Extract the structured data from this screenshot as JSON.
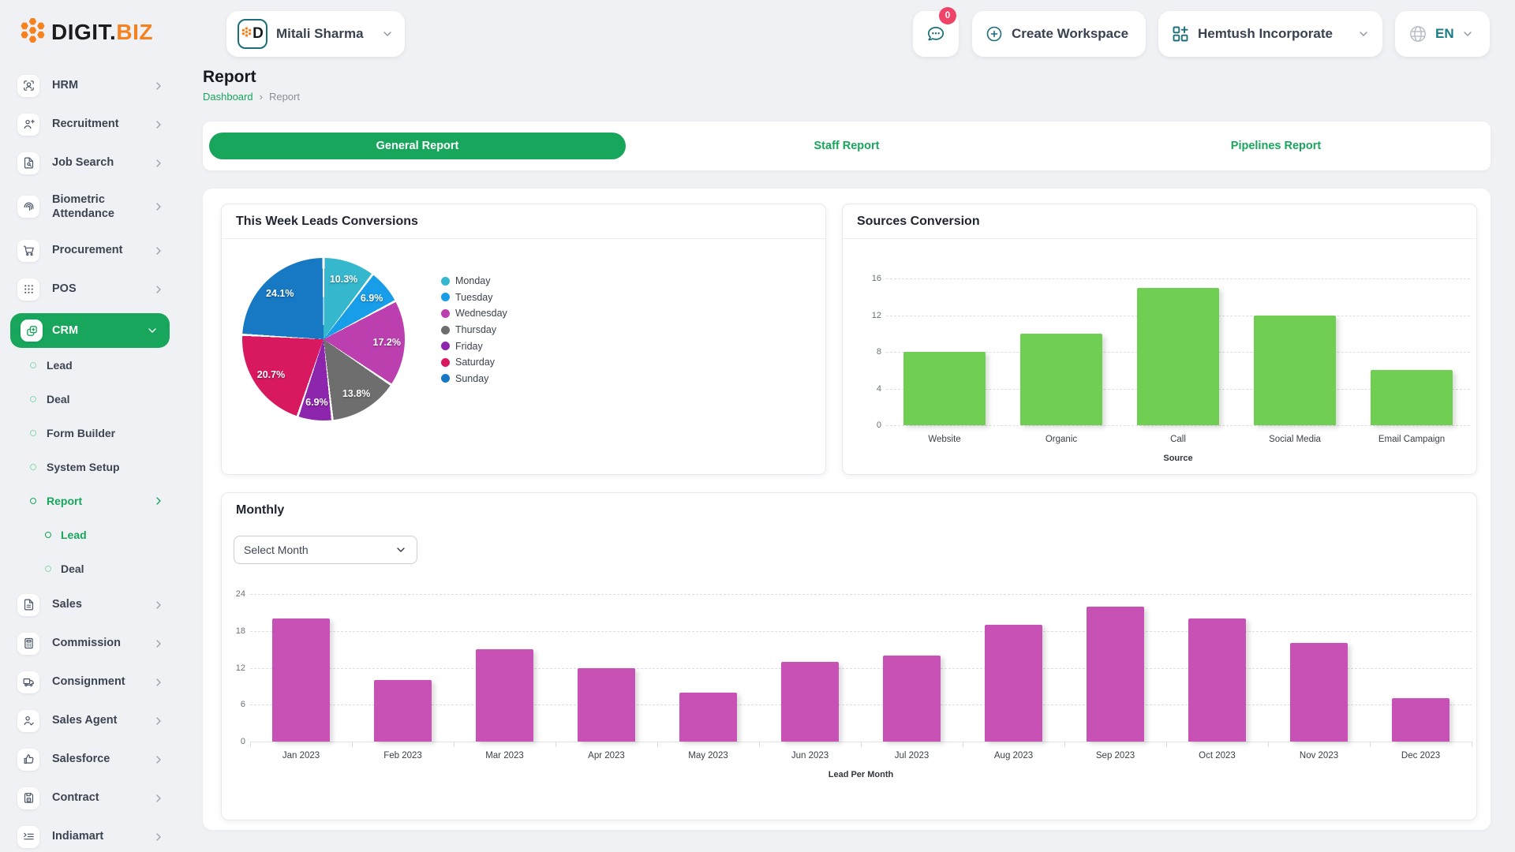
{
  "topbar": {
    "logo_digit": "DIGIT.",
    "logo_biz": "BIZ",
    "workspace_user": "Mitali Sharma",
    "chat_badge": "0",
    "create_workspace_label": "Create Workspace",
    "company": "Hemtush Incorporate",
    "language": "EN",
    "accent_teal": "#1b6f78",
    "badge_red": "#ef4368",
    "logo_orange": "#f6821f"
  },
  "sidebar": {
    "items": [
      {
        "label": "HRM",
        "icon": "hrm-icon"
      },
      {
        "label": "Recruitment",
        "icon": "recruitment-icon"
      },
      {
        "label": "Job Search",
        "icon": "job-search-icon"
      },
      {
        "label": "Biometric Attendance",
        "icon": "fingerprint-icon",
        "tall": true
      },
      {
        "label": "Procurement",
        "icon": "cart-icon"
      },
      {
        "label": "POS",
        "icon": "grid-dots-icon"
      },
      {
        "label": "CRM",
        "icon": "crm-copy-icon",
        "active": true,
        "expanded": true,
        "children": [
          {
            "label": "Lead"
          },
          {
            "label": "Deal"
          },
          {
            "label": "Form Builder"
          },
          {
            "label": "System Setup"
          },
          {
            "label": "Report",
            "active": true,
            "expanded": true,
            "children": [
              {
                "label": "Lead",
                "active": true
              },
              {
                "label": "Deal"
              }
            ]
          }
        ]
      },
      {
        "label": "Sales",
        "icon": "document-icon"
      },
      {
        "label": "Commission",
        "icon": "calculator-icon"
      },
      {
        "label": "Consignment",
        "icon": "truck-icon"
      },
      {
        "label": "Sales Agent",
        "icon": "person-check-icon"
      },
      {
        "label": "Salesforce",
        "icon": "thumbs-up-icon"
      },
      {
        "label": "Contract",
        "icon": "floppy-icon"
      },
      {
        "label": "Indiamart",
        "icon": "list-arrow-icon"
      }
    ],
    "active_green": "#17a65b"
  },
  "page": {
    "title": "Report",
    "breadcrumb": {
      "home": "Dashboard",
      "current": "Report"
    },
    "tabs": [
      {
        "label": "General Report",
        "active": true
      },
      {
        "label": "Staff Report",
        "active": false
      },
      {
        "label": "Pipelines Report",
        "active": false
      }
    ]
  },
  "monthly": {
    "title": "Monthly",
    "select_placeholder": "Select Month"
  },
  "chart_data": [
    {
      "type": "pie",
      "title": "This Week Leads Conversions",
      "labels": [
        "Monday",
        "Tuesday",
        "Wednesday",
        "Thursday",
        "Friday",
        "Saturday",
        "Sunday"
      ],
      "values": [
        10.3,
        6.9,
        17.2,
        13.8,
        6.9,
        20.7,
        24.1
      ],
      "value_labels": [
        "10.3%",
        "6.9%",
        "17.2%",
        "13.8%",
        "6.9%",
        "20.7%",
        "24.1%"
      ],
      "colors": [
        "#35b7ce",
        "#189de9",
        "#bc3fb0",
        "#6e6e6e",
        "#8d25ad",
        "#d9195f",
        "#1779c4"
      ],
      "legend_position": "right",
      "start_angle": 0,
      "direction": "clockwise"
    },
    {
      "type": "bar",
      "title": "Sources Conversion",
      "categories": [
        "Website",
        "Organic",
        "Call",
        "Social Media",
        "Email Campaign"
      ],
      "values": [
        8,
        10,
        15,
        12,
        6
      ],
      "xlabel": "Source",
      "ylabel": "",
      "ylim": [
        0,
        16
      ],
      "yticks": [
        0,
        4,
        8,
        12,
        16
      ],
      "bar_color": "#70cf52",
      "grid": "dashed-horizontal"
    },
    {
      "type": "bar",
      "title": "Monthly",
      "categories": [
        "Jan 2023",
        "Feb 2023",
        "Mar 2023",
        "Apr 2023",
        "May 2023",
        "Jun 2023",
        "Jul 2023",
        "Aug 2023",
        "Sep 2023",
        "Oct 2023",
        "Nov 2023",
        "Dec 2023"
      ],
      "values": [
        20,
        10,
        15,
        12,
        8,
        13,
        14,
        19,
        22,
        20,
        16,
        7
      ],
      "xlabel": "Lead Per Month",
      "ylabel": "",
      "ylim": [
        0,
        24
      ],
      "yticks": [
        0,
        6,
        12,
        18,
        24
      ],
      "bar_color": "#c751b4",
      "grid": "dashed-horizontal"
    }
  ]
}
